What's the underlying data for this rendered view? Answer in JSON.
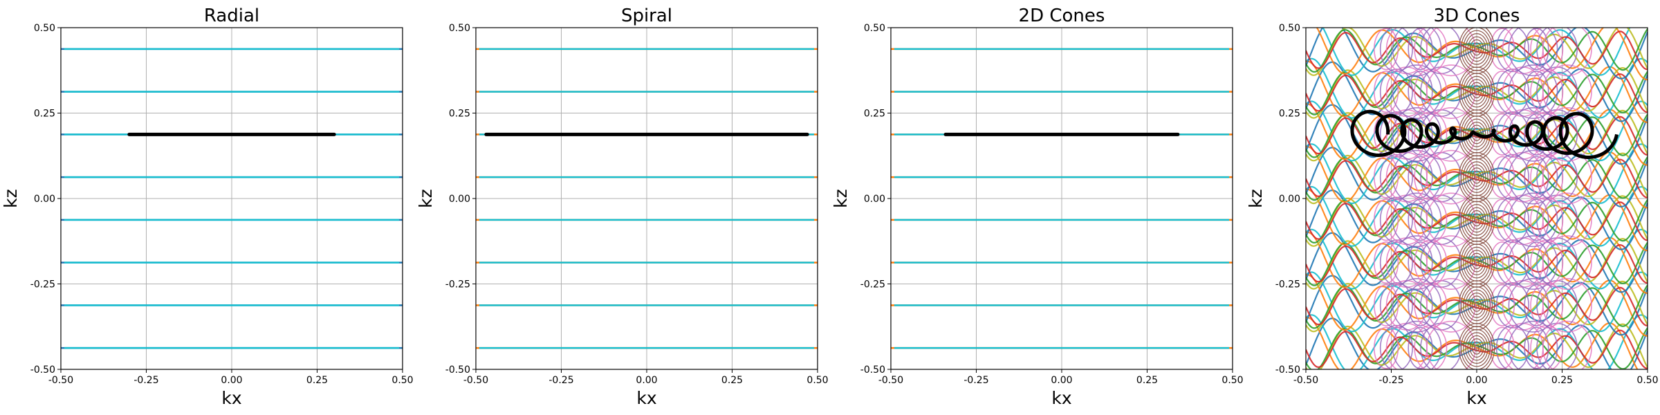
{
  "chart_data": [
    {
      "type": "line",
      "title": "Radial",
      "xlabel": "kx",
      "ylabel": "kz",
      "xlim": [
        -0.5,
        0.5
      ],
      "ylim": [
        -0.5,
        0.5
      ],
      "xticks": [
        "-0.50",
        "-0.25",
        "0.00",
        "0.25",
        "0.50"
      ],
      "yticks": [
        "-0.50",
        "-0.25",
        "0.00",
        "0.25",
        "0.50"
      ],
      "grid": true,
      "background_lines": {
        "pattern": "horizontal",
        "kz_levels": [
          -0.4375,
          -0.3125,
          -0.1875,
          -0.0625,
          0.0625,
          0.1875,
          0.3125,
          0.4375
        ],
        "x_range": [
          -0.5,
          0.5
        ],
        "colors": [
          "#1f77b4",
          "#17becf"
        ]
      },
      "highlight": {
        "color": "#000000",
        "kz": 0.1875,
        "x_range": [
          -0.3,
          0.3
        ]
      }
    },
    {
      "type": "line",
      "title": "Spiral",
      "xlabel": "kx",
      "ylabel": "kz",
      "xlim": [
        -0.5,
        0.5
      ],
      "ylim": [
        -0.5,
        0.5
      ],
      "xticks": [
        "-0.50",
        "-0.25",
        "0.00",
        "0.25",
        "0.50"
      ],
      "yticks": [
        "-0.50",
        "-0.25",
        "0.00",
        "0.25",
        "0.50"
      ],
      "grid": true,
      "background_lines": {
        "pattern": "horizontal",
        "kz_levels": [
          -0.4375,
          -0.3125,
          -0.1875,
          -0.0625,
          0.0625,
          0.1875,
          0.3125,
          0.4375
        ],
        "x_range": [
          -0.5,
          0.5
        ],
        "colors": [
          "#ff7f0e",
          "#17becf"
        ]
      },
      "highlight": {
        "color": "#000000",
        "kz": 0.1875,
        "x_range": [
          -0.47,
          0.47
        ]
      }
    },
    {
      "type": "line",
      "title": "2D Cones",
      "xlabel": "kx",
      "ylabel": "kz",
      "xlim": [
        -0.5,
        0.5
      ],
      "ylim": [
        -0.5,
        0.5
      ],
      "xticks": [
        "-0.50",
        "-0.25",
        "0.00",
        "0.25",
        "0.50"
      ],
      "yticks": [
        "-0.50",
        "-0.25",
        "0.00",
        "0.25",
        "0.50"
      ],
      "grid": true,
      "background_lines": {
        "pattern": "horizontal",
        "kz_levels": [
          -0.4375,
          -0.3125,
          -0.1875,
          -0.0625,
          0.0625,
          0.1875,
          0.3125,
          0.4375
        ],
        "x_range": [
          -0.5,
          0.5
        ],
        "colors": [
          "#ff7f0e",
          "#17becf"
        ]
      },
      "highlight": {
        "color": "#000000",
        "kz": 0.1875,
        "x_range": [
          -0.34,
          0.34
        ]
      }
    },
    {
      "type": "line",
      "title": "3D Cones",
      "xlabel": "kx",
      "ylabel": "kz",
      "xlim": [
        -0.5,
        0.5
      ],
      "ylim": [
        -0.5,
        0.5
      ],
      "xticks": [
        "-0.50",
        "-0.25",
        "0.00",
        "0.25",
        "0.50"
      ],
      "yticks": [
        "-0.50",
        "-0.25",
        "0.00",
        "0.25",
        "0.50"
      ],
      "grid": true,
      "background_lines": {
        "pattern": "cones3d",
        "kz_levels": [
          -0.4375,
          -0.3125,
          -0.1875,
          -0.0625,
          0.0625,
          0.1875,
          0.3125,
          0.4375
        ],
        "colors": [
          "#1f77b4",
          "#ff7f0e",
          "#2ca02c",
          "#d62728",
          "#9467bd",
          "#8c564b",
          "#e377c2",
          "#bcbd22",
          "#17becf"
        ]
      },
      "highlight": {
        "color": "#000000",
        "kz": 0.1875,
        "x_range": [
          -0.33,
          0.34
        ],
        "max_radius": 0.07,
        "turns": 11
      }
    }
  ]
}
